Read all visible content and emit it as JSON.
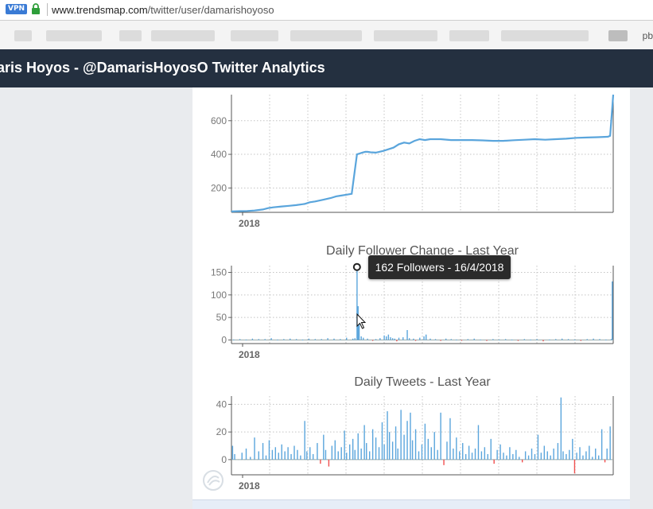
{
  "browser": {
    "vpn_label": "VPN",
    "url_host": "www.trendsmap.com",
    "url_path": "/twitter/user/damarishoyoso",
    "bookmarks_edge_text": "pb",
    "accent": "#3a7bd5"
  },
  "header": {
    "title": "aris Hoyos - @DamarisHoyosO Twitter Analytics",
    "bg": "#243040"
  },
  "tooltip": {
    "text": "162 Followers - 16/4/2018"
  },
  "chart_data": [
    {
      "type": "line",
      "title": "",
      "xlabel": "2018",
      "ylabel": "",
      "yticks": [
        200,
        400,
        600
      ],
      "ylim": [
        55,
        755
      ],
      "xlim": [
        0,
        365
      ],
      "grid": true,
      "color": "#5aa5dc",
      "series": [
        {
          "x": [
            0,
            8,
            15,
            22,
            30,
            35,
            40,
            48,
            55,
            62,
            70,
            75,
            80,
            88,
            95,
            100,
            105,
            110,
            115,
            120,
            125,
            128,
            130,
            133,
            138,
            145,
            150,
            155,
            160,
            165,
            170,
            175,
            180,
            185,
            190,
            200,
            210,
            220,
            230,
            240,
            250,
            260,
            270,
            280,
            290,
            300,
            310,
            320,
            330,
            340,
            350,
            360,
            362,
            365
          ],
          "y": [
            60,
            62,
            63,
            66,
            72,
            80,
            85,
            90,
            94,
            98,
            105,
            115,
            120,
            130,
            140,
            150,
            155,
            160,
            165,
            400,
            410,
            415,
            415,
            412,
            410,
            420,
            430,
            440,
            460,
            470,
            465,
            480,
            490,
            485,
            490,
            490,
            485,
            485,
            485,
            483,
            480,
            480,
            484,
            487,
            490,
            487,
            490,
            493,
            498,
            500,
            502,
            505,
            510,
            755
          ]
        }
      ]
    },
    {
      "type": "bar",
      "title": "Daily Follower Change - Last Year",
      "xlabel": "2018",
      "ylabel": "",
      "yticks": [
        0,
        50,
        100,
        150
      ],
      "ylim": [
        -8,
        165
      ],
      "xlim": [
        0,
        365
      ],
      "grid": true,
      "pos_color": "#5aa5dc",
      "neg_color": "#f0504f",
      "bars": [
        [
          2,
          1
        ],
        [
          8,
          2
        ],
        [
          14,
          1
        ],
        [
          20,
          3
        ],
        [
          26,
          2
        ],
        [
          32,
          2
        ],
        [
          38,
          4
        ],
        [
          44,
          1
        ],
        [
          50,
          2
        ],
        [
          56,
          3
        ],
        [
          62,
          2
        ],
        [
          68,
          1
        ],
        [
          74,
          3
        ],
        [
          80,
          2
        ],
        [
          86,
          2
        ],
        [
          92,
          4
        ],
        [
          98,
          3
        ],
        [
          104,
          2
        ],
        [
          110,
          5
        ],
        [
          116,
          3
        ],
        [
          118,
          4
        ],
        [
          120,
          162
        ],
        [
          121,
          75
        ],
        [
          122,
          40
        ],
        [
          124,
          8
        ],
        [
          126,
          5
        ],
        [
          130,
          3
        ],
        [
          135,
          -2
        ],
        [
          138,
          2
        ],
        [
          142,
          4
        ],
        [
          146,
          10
        ],
        [
          148,
          8
        ],
        [
          150,
          12
        ],
        [
          152,
          6
        ],
        [
          154,
          4
        ],
        [
          156,
          3
        ],
        [
          158,
          -3
        ],
        [
          160,
          5
        ],
        [
          164,
          6
        ],
        [
          168,
          22
        ],
        [
          170,
          4
        ],
        [
          174,
          3
        ],
        [
          176,
          -2
        ],
        [
          180,
          5
        ],
        [
          184,
          8
        ],
        [
          186,
          12
        ],
        [
          190,
          3
        ],
        [
          195,
          2
        ],
        [
          200,
          -2
        ],
        [
          205,
          3
        ],
        [
          210,
          2
        ],
        [
          215,
          1
        ],
        [
          220,
          -1
        ],
        [
          226,
          2
        ],
        [
          232,
          3
        ],
        [
          238,
          1
        ],
        [
          244,
          -2
        ],
        [
          250,
          2
        ],
        [
          256,
          1
        ],
        [
          262,
          2
        ],
        [
          268,
          1
        ],
        [
          274,
          -2
        ],
        [
          280,
          2
        ],
        [
          286,
          1
        ],
        [
          292,
          2
        ],
        [
          298,
          -3
        ],
        [
          304,
          1
        ],
        [
          310,
          2
        ],
        [
          316,
          3
        ],
        [
          322,
          2
        ],
        [
          328,
          1
        ],
        [
          334,
          -2
        ],
        [
          340,
          2
        ],
        [
          346,
          3
        ],
        [
          352,
          2
        ],
        [
          358,
          1
        ],
        [
          363,
          2
        ],
        [
          364,
          130
        ]
      ]
    },
    {
      "type": "bar",
      "title": "Daily Tweets - Last Year",
      "xlabel": "2018",
      "ylabel": "",
      "yticks": [
        0,
        20,
        40
      ],
      "ylim": [
        -11,
        46
      ],
      "xlim": [
        0,
        365
      ],
      "grid": true,
      "pos_color": "#5aa5dc",
      "neg_color": "#f0504f",
      "bars": [
        [
          1,
          10
        ],
        [
          3,
          4
        ],
        [
          10,
          5
        ],
        [
          14,
          8
        ],
        [
          18,
          2
        ],
        [
          22,
          16
        ],
        [
          26,
          6
        ],
        [
          30,
          12
        ],
        [
          33,
          3
        ],
        [
          36,
          14
        ],
        [
          39,
          7
        ],
        [
          42,
          9
        ],
        [
          45,
          5
        ],
        [
          48,
          11
        ],
        [
          51,
          6
        ],
        [
          54,
          9
        ],
        [
          57,
          4
        ],
        [
          60,
          10
        ],
        [
          63,
          7
        ],
        [
          66,
          3
        ],
        [
          70,
          28
        ],
        [
          72,
          6
        ],
        [
          75,
          9
        ],
        [
          78,
          4
        ],
        [
          82,
          12
        ],
        [
          85,
          -3
        ],
        [
          88,
          18
        ],
        [
          90,
          7
        ],
        [
          93,
          -5
        ],
        [
          96,
          10
        ],
        [
          99,
          14
        ],
        [
          102,
          6
        ],
        [
          105,
          9
        ],
        [
          108,
          21
        ],
        [
          110,
          5
        ],
        [
          113,
          11
        ],
        [
          116,
          15
        ],
        [
          118,
          7
        ],
        [
          121,
          19
        ],
        [
          124,
          8
        ],
        [
          127,
          25
        ],
        [
          129,
          12
        ],
        [
          132,
          6
        ],
        [
          135,
          22
        ],
        [
          138,
          16
        ],
        [
          141,
          9
        ],
        [
          144,
          27
        ],
        [
          146,
          11
        ],
        [
          149,
          35
        ],
        [
          151,
          20
        ],
        [
          154,
          13
        ],
        [
          157,
          24
        ],
        [
          159,
          8
        ],
        [
          162,
          36
        ],
        [
          165,
          18
        ],
        [
          168,
          28
        ],
        [
          171,
          34
        ],
        [
          173,
          14
        ],
        [
          176,
          22
        ],
        [
          179,
          6
        ],
        [
          182,
          11
        ],
        [
          185,
          26
        ],
        [
          188,
          15
        ],
        [
          191,
          9
        ],
        [
          194,
          20
        ],
        [
          197,
          7
        ],
        [
          200,
          34
        ],
        [
          203,
          -4
        ],
        [
          206,
          13
        ],
        [
          209,
          30
        ],
        [
          212,
          8
        ],
        [
          215,
          16
        ],
        [
          218,
          6
        ],
        [
          221,
          12
        ],
        [
          224,
          4
        ],
        [
          227,
          10
        ],
        [
          230,
          5
        ],
        [
          233,
          8
        ],
        [
          236,
          25
        ],
        [
          239,
          6
        ],
        [
          242,
          9
        ],
        [
          245,
          4
        ],
        [
          248,
          15
        ],
        [
          251,
          -3
        ],
        [
          254,
          7
        ],
        [
          257,
          11
        ],
        [
          260,
          5
        ],
        [
          263,
          3
        ],
        [
          266,
          9
        ],
        [
          269,
          4
        ],
        [
          272,
          7
        ],
        [
          275,
          2
        ],
        [
          278,
          -2
        ],
        [
          281,
          6
        ],
        [
          284,
          3
        ],
        [
          287,
          8
        ],
        [
          290,
          4
        ],
        [
          293,
          18
        ],
        [
          296,
          5
        ],
        [
          299,
          10
        ],
        [
          302,
          6
        ],
        [
          305,
          3
        ],
        [
          308,
          8
        ],
        [
          312,
          12
        ],
        [
          315,
          45
        ],
        [
          317,
          6
        ],
        [
          320,
          4
        ],
        [
          323,
          7
        ],
        [
          326,
          15
        ],
        [
          328,
          -10
        ],
        [
          330,
          5
        ],
        [
          333,
          9
        ],
        [
          336,
          3
        ],
        [
          339,
          6
        ],
        [
          342,
          10
        ],
        [
          345,
          2
        ],
        [
          348,
          8
        ],
        [
          351,
          3
        ],
        [
          354,
          22
        ],
        [
          357,
          -2
        ],
        [
          359,
          8
        ],
        [
          362,
          24
        ]
      ]
    }
  ]
}
